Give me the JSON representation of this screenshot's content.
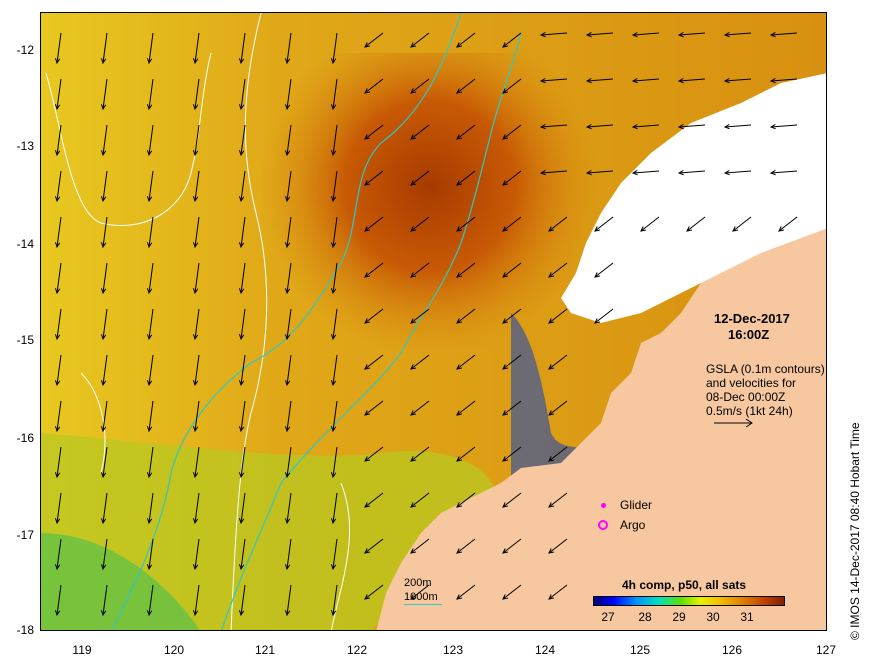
{
  "map": {
    "lat_labels": [
      "-12",
      "-13",
      "-14",
      "-15",
      "-16",
      "-17",
      "-18"
    ],
    "lon_labels": [
      "119",
      "120",
      "121",
      "122",
      "123",
      "124",
      "125",
      "126",
      "127"
    ],
    "lat_range": [
      -18,
      -11.75
    ],
    "lon_range": [
      118.65,
      127
    ],
    "colors": {
      "land": "#f7c8a0",
      "no_data": "#ffffff",
      "contour": "#ffffff",
      "isobath": "#30c8c0"
    }
  },
  "info": {
    "date": "12-Dec-2017",
    "time": "16:00Z",
    "gsla_line1": "GSLA (0.1m contours)",
    "gsla_line2": "and velocities for",
    "gsla_line3": "08-Dec 00:00Z",
    "scale_text": "0.5m/s (1kt 24h)"
  },
  "legend": {
    "glider": "Glider",
    "argo": "Argo",
    "glider_color": "#ff00ff",
    "argo_color": "#ff00ff"
  },
  "depth": {
    "d200": "200m",
    "d1000": "1000m"
  },
  "colorbar": {
    "title": "4h comp, p50, all sats",
    "ticks": [
      "27",
      "28",
      "29",
      "30",
      "31"
    ]
  },
  "stamp": "© IMOS 14-Dec-2017 08:40 Hobart Time"
}
